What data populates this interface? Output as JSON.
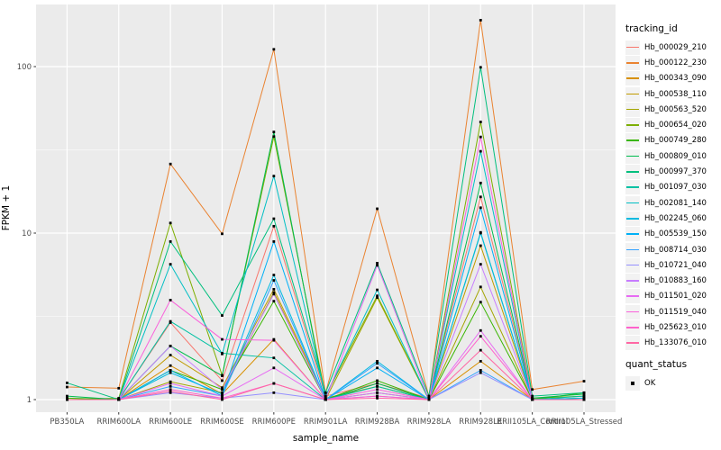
{
  "chart_data": {
    "type": "line",
    "title": "",
    "xlabel": "sample_name",
    "ylabel": "FPKM + 1",
    "y_scale": "log10",
    "y_ticks": [
      1,
      10,
      100
    ],
    "y_minor_ticks": [
      3.1623,
      31.623
    ],
    "ylim": [
      0.85,
      240
    ],
    "grid": "major-and-minor, white on grey panel",
    "panel_background": "#EBEBEB",
    "gridline_color": "#FFFFFF",
    "point_marker": "black-square",
    "legend_position": "right",
    "legend_title": "tracking_id",
    "categories": [
      "PB350LA",
      "RRIM600LA",
      "RRIM600LE",
      "RRIM600SE",
      "RRIM600PE",
      "RRIM901LA",
      "RRIM928BA",
      "RRIM928LA",
      "RRIM928LE",
      "RRII105LA_Control",
      "RRII105LA_Stressed"
    ],
    "series": [
      {
        "name": "Hb_000029_210",
        "color": "#F8766D",
        "values": [
          1.0,
          1.0,
          2.9,
          1.3,
          11.0,
          1.05,
          1.25,
          1.02,
          16.5,
          1.02,
          1.0
        ]
      },
      {
        "name": "Hb_000122_230",
        "color": "#EA8331",
        "values": [
          1.19,
          1.17,
          26.0,
          9.9,
          127.0,
          1.1,
          14.0,
          1.05,
          190.0,
          1.15,
          1.29
        ]
      },
      {
        "name": "Hb_000343_090",
        "color": "#D89000",
        "values": [
          1.0,
          1.0,
          1.6,
          1.08,
          2.3,
          1.0,
          1.1,
          1.0,
          1.7,
          1.0,
          1.02
        ]
      },
      {
        "name": "Hb_000538_110",
        "color": "#C09B00",
        "values": [
          1.0,
          1.0,
          1.85,
          1.18,
          4.6,
          1.02,
          1.2,
          1.0,
          8.4,
          1.0,
          1.0
        ]
      },
      {
        "name": "Hb_000563_520",
        "color": "#A3A500",
        "values": [
          1.0,
          1.0,
          1.28,
          1.1,
          4.4,
          1.0,
          4.1,
          1.0,
          4.75,
          1.0,
          1.0
        ]
      },
      {
        "name": "Hb_000654_020",
        "color": "#7CAE00",
        "values": [
          1.0,
          1.02,
          11.5,
          1.4,
          38.0,
          1.05,
          4.2,
          1.0,
          46.5,
          1.02,
          1.05
        ]
      },
      {
        "name": "Hb_000749_280",
        "color": "#39B600",
        "values": [
          1.02,
          1.0,
          1.5,
          1.15,
          3.9,
          1.0,
          1.3,
          1.0,
          3.85,
          1.0,
          1.1
        ]
      },
      {
        "name": "Hb_000809_010",
        "color": "#00BB4E",
        "values": [
          1.05,
          1.0,
          2.1,
          1.39,
          40.5,
          1.0,
          1.25,
          1.0,
          20.0,
          1.02,
          1.08
        ]
      },
      {
        "name": "Hb_000997_370",
        "color": "#00BF7D",
        "values": [
          1.26,
          1.0,
          8.9,
          3.2,
          12.2,
          1.1,
          6.6,
          1.05,
          99.0,
          1.05,
          1.1
        ]
      },
      {
        "name": "Hb_001097_030",
        "color": "#00C1A3",
        "values": [
          1.0,
          1.0,
          2.95,
          1.9,
          1.78,
          1.0,
          1.2,
          1.0,
          10.1,
          1.0,
          1.05
        ]
      },
      {
        "name": "Hb_002081_140",
        "color": "#00BFC4",
        "values": [
          1.0,
          1.0,
          6.5,
          1.88,
          22.0,
          1.05,
          4.56,
          1.0,
          31.0,
          1.0,
          1.02
        ]
      },
      {
        "name": "Hb_002245_060",
        "color": "#00BAE0",
        "values": [
          1.0,
          1.0,
          1.45,
          1.08,
          5.6,
          1.0,
          1.7,
          1.0,
          10.0,
          1.0,
          1.02
        ]
      },
      {
        "name": "Hb_005539_150",
        "color": "#00B0F6",
        "values": [
          1.0,
          1.0,
          1.5,
          1.05,
          8.9,
          1.0,
          1.55,
          1.0,
          14.2,
          1.0,
          1.0
        ]
      },
      {
        "name": "Hb_008714_030",
        "color": "#35A2FF",
        "values": [
          1.0,
          1.0,
          1.2,
          1.05,
          5.2,
          1.0,
          1.65,
          1.0,
          1.5,
          1.0,
          1.0
        ]
      },
      {
        "name": "Hb_010721_040",
        "color": "#9590FF",
        "values": [
          1.0,
          1.0,
          1.1,
          1.02,
          1.1,
          1.0,
          1.05,
          1.0,
          1.45,
          1.0,
          1.0
        ]
      },
      {
        "name": "Hb_010883_160",
        "color": "#C77CFF",
        "values": [
          1.0,
          1.0,
          2.1,
          1.15,
          4.3,
          1.0,
          1.1,
          1.0,
          6.5,
          1.0,
          1.0
        ]
      },
      {
        "name": "Hb_011501_020",
        "color": "#E76BF3",
        "values": [
          1.0,
          1.0,
          1.25,
          1.05,
          1.55,
          1.0,
          6.4,
          1.0,
          2.6,
          1.0,
          1.0
        ]
      },
      {
        "name": "Hb_011519_040",
        "color": "#FA62DB",
        "values": [
          1.0,
          1.0,
          3.96,
          2.3,
          2.27,
          1.0,
          1.15,
          1.0,
          37.8,
          1.0,
          1.0
        ]
      },
      {
        "name": "Hb_025623_010",
        "color": "#FF61CC",
        "values": [
          1.0,
          1.0,
          1.15,
          1.02,
          1.25,
          1.0,
          1.05,
          1.0,
          2.4,
          1.0,
          1.0
        ]
      },
      {
        "name": "Hb_133076_010",
        "color": "#FF67A4",
        "values": [
          1.0,
          1.0,
          1.12,
          1.0,
          1.25,
          1.0,
          1.02,
          1.0,
          1.98,
          1.0,
          1.0
        ]
      }
    ],
    "quant_legend": {
      "title": "quant_status",
      "items": [
        {
          "label": "OK",
          "marker": "black-square"
        }
      ]
    }
  }
}
